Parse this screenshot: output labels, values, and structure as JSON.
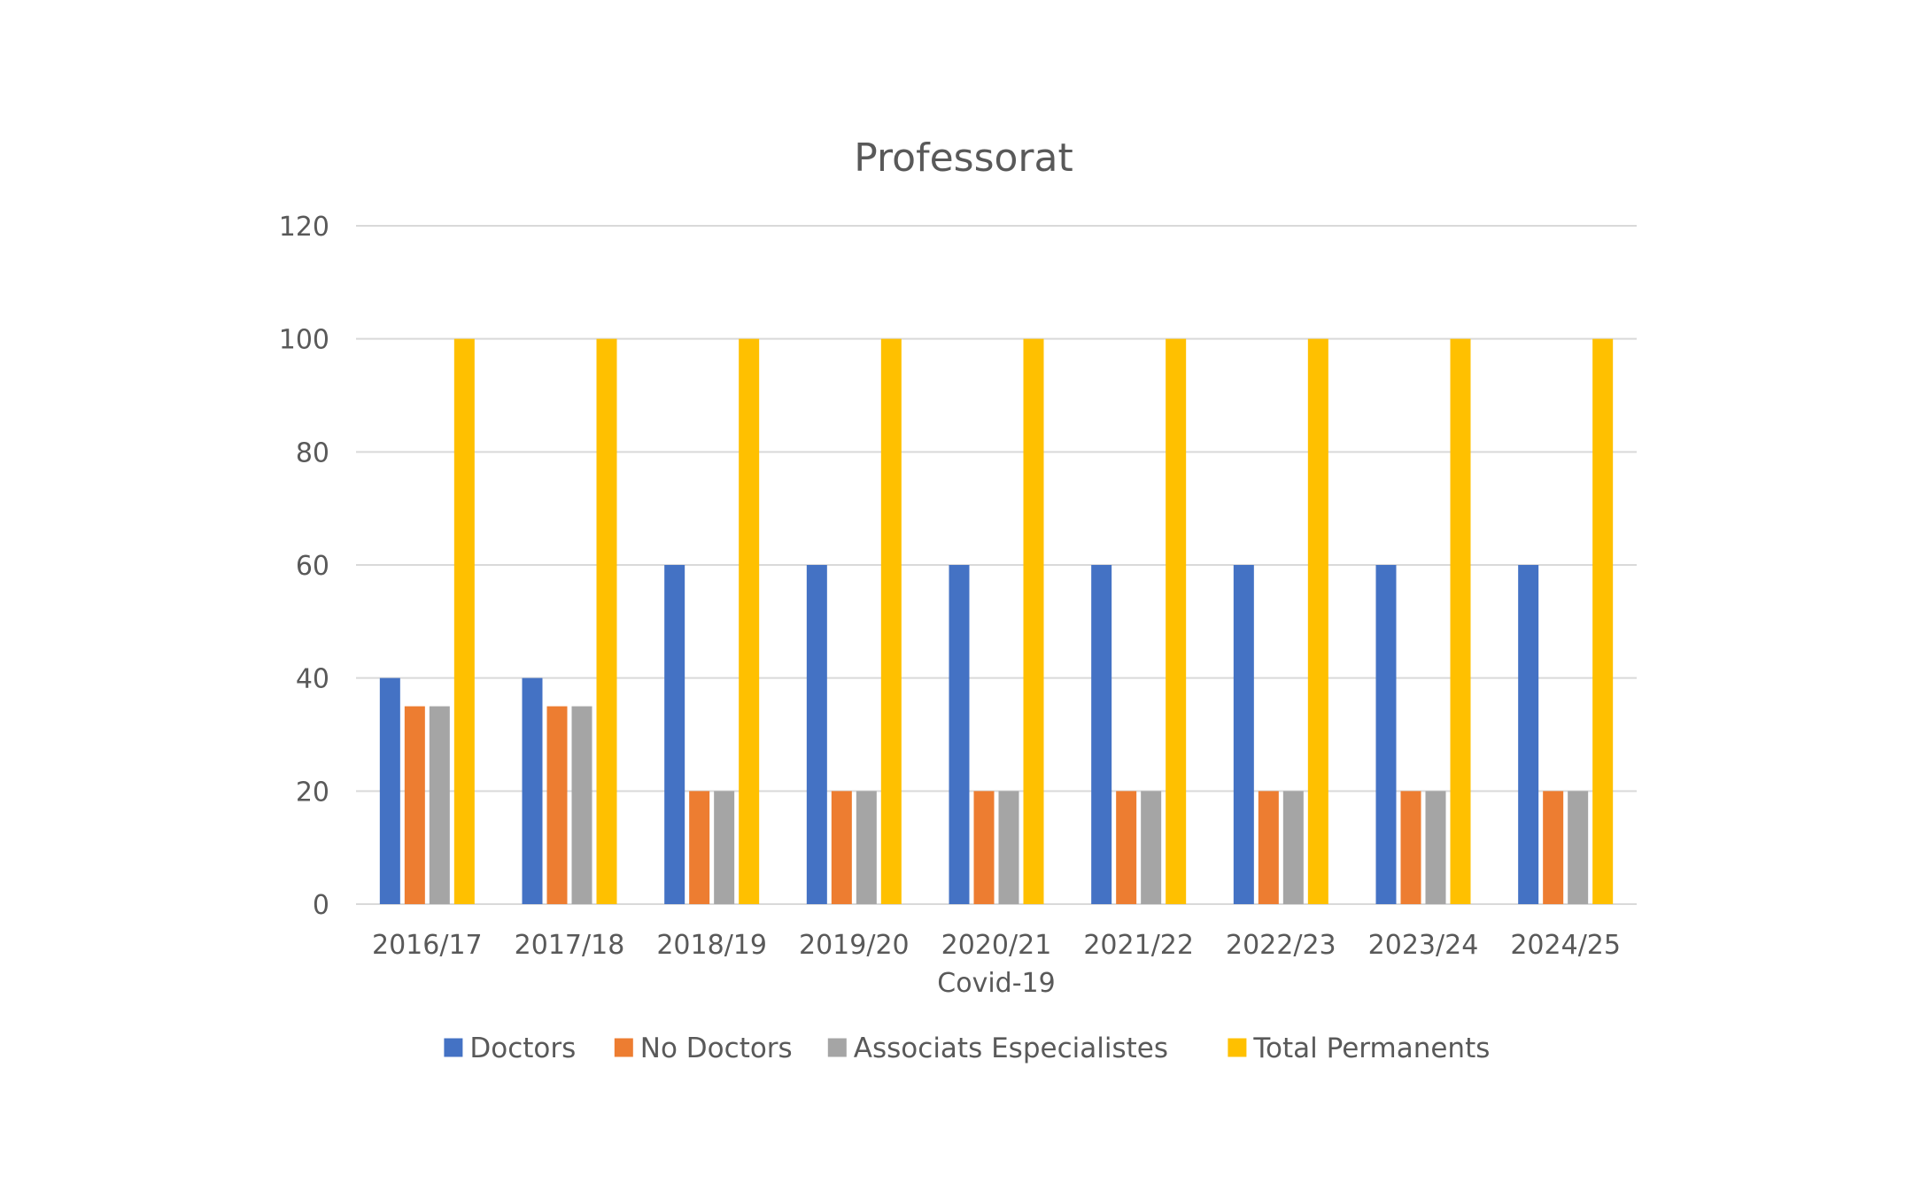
{
  "chart_data": {
    "type": "bar",
    "title": "Professorat",
    "xlabel": "",
    "ylabel": "",
    "categories": [
      [
        "2016/17"
      ],
      [
        "2017/18"
      ],
      [
        "2018/19"
      ],
      [
        "2019/20"
      ],
      [
        "2020/21",
        "Covid-19"
      ],
      [
        "2021/22"
      ],
      [
        "2022/23"
      ],
      [
        "2023/24"
      ],
      [
        "2024/25"
      ]
    ],
    "ylim": [
      0,
      120
    ],
    "yticks": [
      "0",
      "20",
      "40",
      "60",
      "80",
      "100",
      "120"
    ],
    "grid": true,
    "legend_position": "bottom",
    "series": [
      {
        "name": "Doctors",
        "color": "#4472C4",
        "values": [
          40,
          40,
          60,
          60,
          60,
          60,
          60,
          60,
          60
        ]
      },
      {
        "name": "No Doctors",
        "color": "#ED7D31",
        "values": [
          35,
          35,
          20,
          20,
          20,
          20,
          20,
          20,
          20
        ]
      },
      {
        "name": "Associats Especialistes",
        "color": "#A5A5A5",
        "values": [
          35,
          35,
          20,
          20,
          20,
          20,
          20,
          20,
          20
        ]
      },
      {
        "name": "Total Permanents",
        "color": "#FFC000",
        "values": [
          100,
          100,
          100,
          100,
          100,
          100,
          100,
          100,
          100
        ]
      }
    ]
  }
}
